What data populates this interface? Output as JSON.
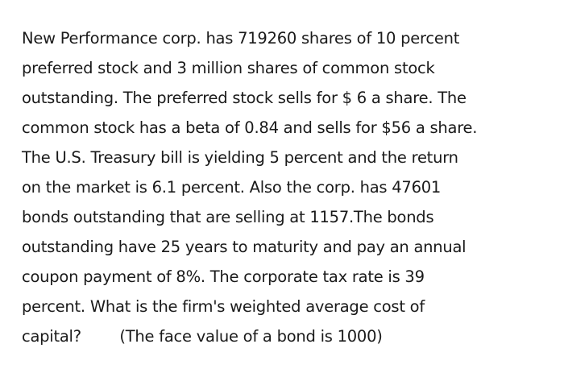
{
  "document": {
    "lines": [
      "New Performance corp. has 719260 shares of 10 percent",
      "preferred stock and 3 million shares of common stock",
      "outstanding. The preferred stock sells for $ 6 a share. The",
      "common stock has a beta of 0.84 and sells for $56 a share.",
      "The U.S. Treasury bill is yielding 5 percent and the return",
      "on the market is 6.1 percent. Also the corp. has 47601",
      "bonds outstanding that are selling at 1157.The bonds",
      "outstanding have 25 years to maturity and pay an annual",
      "coupon payment of 8%. The corporate tax rate is 39",
      "percent. What is the firm's weighted average cost of",
      "capital?        (The face value of a bond is 1000)"
    ]
  }
}
